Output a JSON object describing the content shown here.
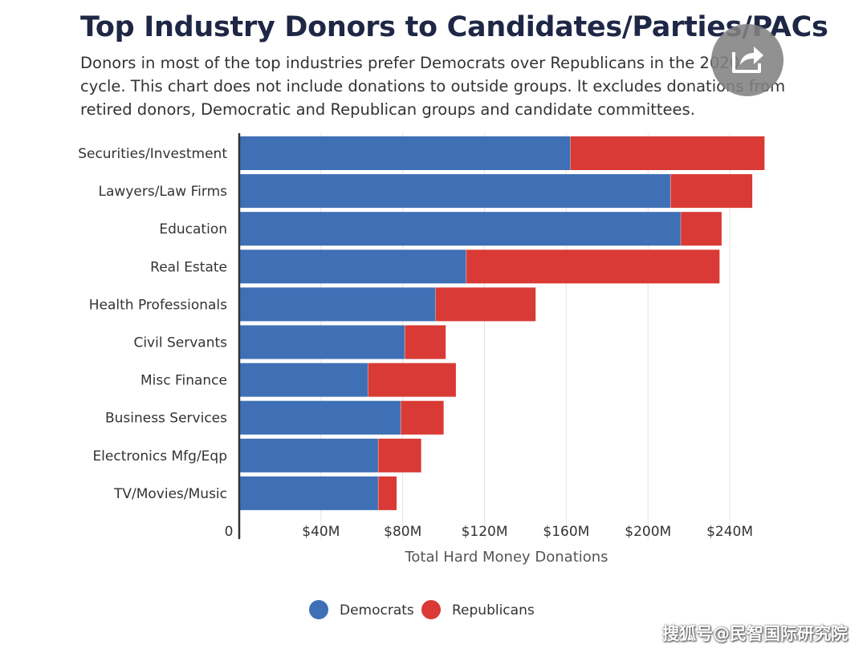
{
  "header": {
    "title": "Top Industry Donors to Candidates/Parties/PACs",
    "subtitle": "Donors in most of the top industries prefer Democrats over Republicans in the 2020 cycle. This chart does not include donations to outside groups. It excludes donations from retired donors, Democratic and Republican groups and candidate committees."
  },
  "share": {
    "icon": "share-icon"
  },
  "chart_data": {
    "type": "bar",
    "orientation": "horizontal",
    "stacked": true,
    "title": "Top Industry Donors to Candidates/Parties/PACs",
    "xlabel": "Total Hard Money Donations",
    "ylabel": "",
    "xlim": [
      0,
      260
    ],
    "x_unit": "$M",
    "ticks": [
      {
        "value": 0,
        "label": "0"
      },
      {
        "value": 40,
        "label": "$40M"
      },
      {
        "value": 80,
        "label": "$80M"
      },
      {
        "value": 120,
        "label": "$120M"
      },
      {
        "value": 160,
        "label": "$160M"
      },
      {
        "value": 200,
        "label": "$200M"
      },
      {
        "value": 240,
        "label": "$240M"
      }
    ],
    "grid": true,
    "categories": [
      "Securities/Investment",
      "Lawyers/Law Firms",
      "Education",
      "Real Estate",
      "Health Professionals",
      "Civil Servants",
      "Misc Finance",
      "Business Services",
      "Electronics Mfg/Eqp",
      "TV/Movies/Music"
    ],
    "series": [
      {
        "name": "Democrats",
        "color": "#3f6fb5",
        "values": [
          162,
          211,
          216,
          111,
          96,
          81,
          63,
          79,
          68,
          68
        ]
      },
      {
        "name": "Republicans",
        "color": "#d93a35",
        "values": [
          95,
          40,
          20,
          124,
          49,
          20,
          43,
          21,
          21,
          9
        ]
      }
    ],
    "legend_position": "bottom-center"
  },
  "watermark": "搜狐号@民智国际研究院"
}
